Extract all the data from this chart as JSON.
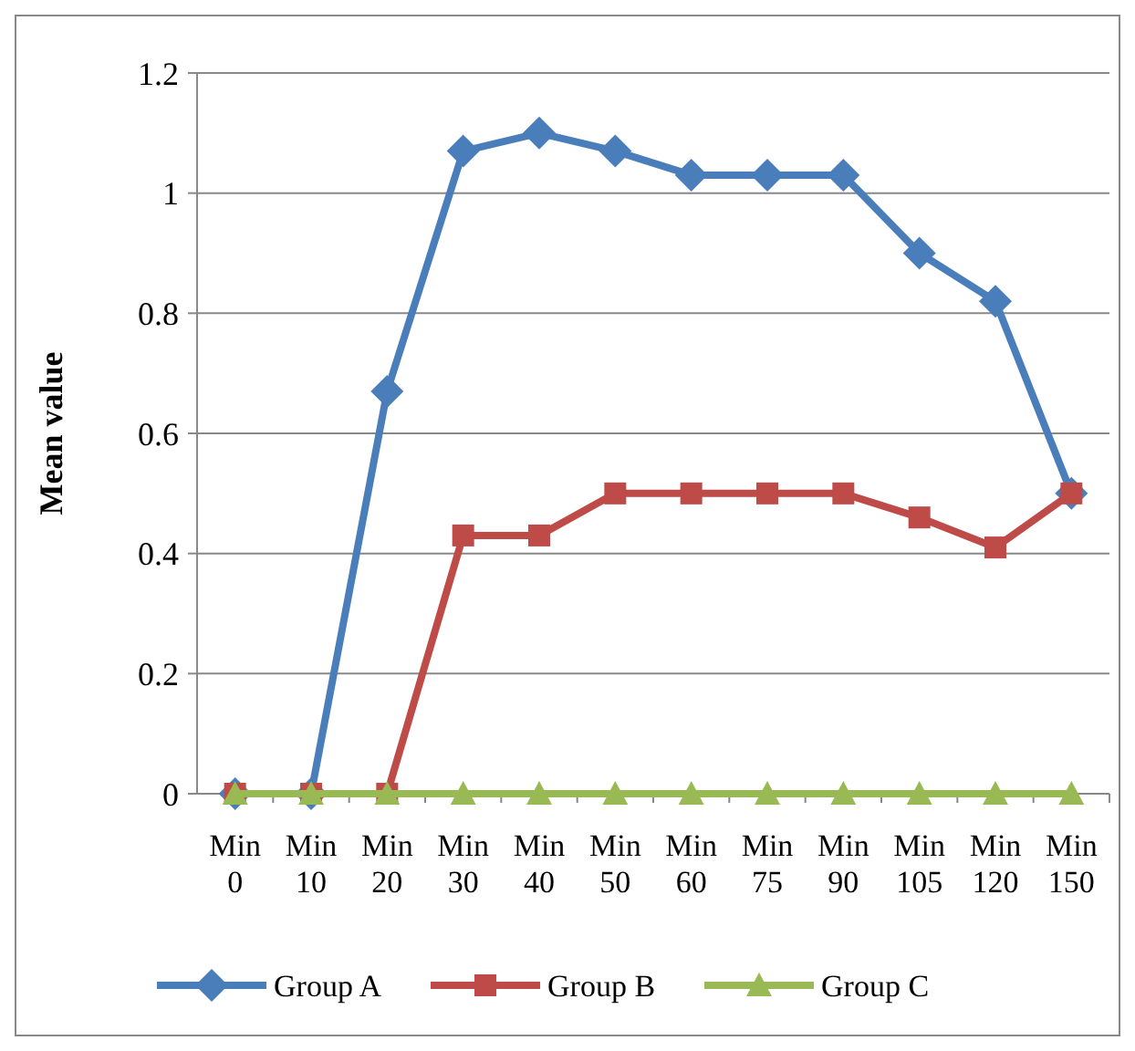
{
  "chart_data": {
    "type": "line",
    "ylabel": "Mean value",
    "categories": [
      "Min 0",
      "Min 10",
      "Min 20",
      "Min 30",
      "Min 40",
      "Min 50",
      "Min 60",
      "Min 75",
      "Min 90",
      "Min 105",
      "Min 120",
      "Min 150"
    ],
    "series": [
      {
        "name": "Group A",
        "color": "#4a7ebb",
        "marker": "diamond",
        "values": [
          0,
          0,
          0.67,
          1.07,
          1.1,
          1.07,
          1.03,
          1.03,
          1.03,
          0.9,
          0.82,
          0.5
        ]
      },
      {
        "name": "Group B",
        "color": "#be4b48",
        "marker": "square",
        "values": [
          0,
          0,
          0,
          0.43,
          0.43,
          0.5,
          0.5,
          0.5,
          0.5,
          0.46,
          0.41,
          0.5
        ]
      },
      {
        "name": "Group C",
        "color": "#98b954",
        "marker": "triangle",
        "values": [
          0,
          0,
          0,
          0,
          0,
          0,
          0,
          0,
          0,
          0,
          0,
          0
        ]
      }
    ],
    "ylim": [
      0,
      1.2
    ],
    "yticks": [
      0,
      0.2,
      0.4,
      0.6,
      0.8,
      1,
      1.2
    ],
    "grid": "y",
    "legend": "bottom",
    "line_style": "solid"
  }
}
